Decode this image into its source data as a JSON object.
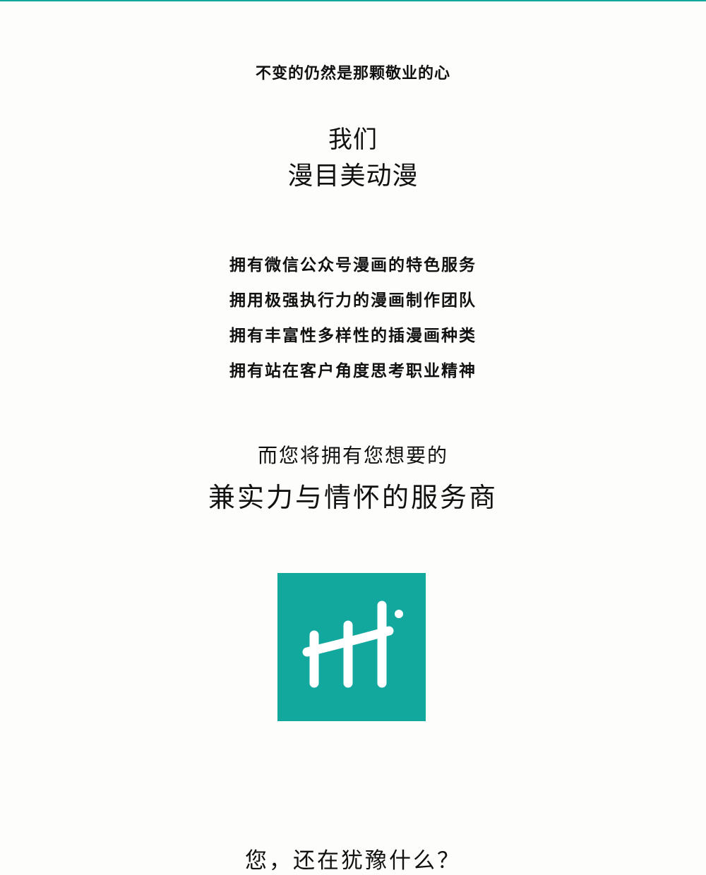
{
  "tagline": "不变的仍然是那颗敬业的心",
  "intro": {
    "we": "我们",
    "company": "漫目美动漫"
  },
  "features": [
    "拥有微信公众号漫画的特色服务",
    "拥用极强执行力的漫画制作团队",
    "拥有丰富性多样性的插漫画种类",
    "拥有站在客户角度思考职业精神"
  ],
  "promise": {
    "lead": "而您将拥有您想要的",
    "main": "兼实力与情怀的服务商"
  },
  "logo": {
    "icon": "hh-logo-icon",
    "background_color": "#13a89e",
    "mark_color": "#ffffff"
  },
  "closing": "您，还在犹豫什么？",
  "colors": {
    "accent": "#13a89e",
    "text": "#111111",
    "background": "#fdfdfb"
  }
}
